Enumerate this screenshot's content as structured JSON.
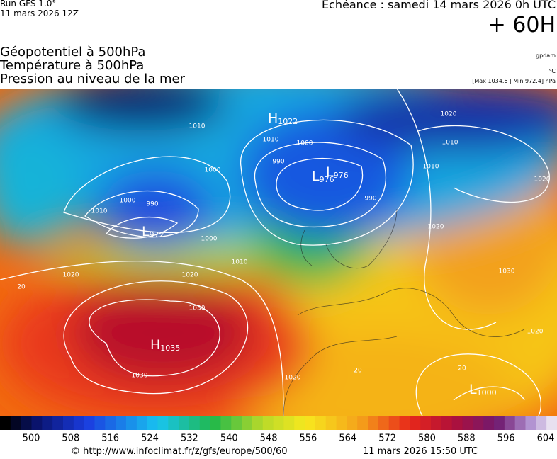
{
  "header": {
    "run": "Run GFS 1.0°",
    "run_date": "11 mars 2026 12Z",
    "echeance": "Echéance : samedi 14 mars 2026 0h UTC",
    "lead": "+ 60H"
  },
  "fields": [
    "Géopotentiel à 500hPa",
    "Température à 500hPa",
    "Pression au niveau de la mer"
  ],
  "units": [
    "gpdam",
    "°C",
    "[Max 1034.6 | Min 972.4] hPa"
  ],
  "map": {
    "centers": [
      {
        "kind": "H",
        "value": "1022"
      },
      {
        "kind": "L",
        "value": "976"
      },
      {
        "kind": "L",
        "value": "976"
      },
      {
        "kind": "L",
        "value": "972"
      },
      {
        "kind": "H",
        "value": "1035"
      },
      {
        "kind": "L",
        "value": "1000"
      }
    ],
    "contour_labels": [
      "1010",
      "1010",
      "1000",
      "990",
      "1000",
      "1010",
      "1000",
      "990",
      "990",
      "1020",
      "1010",
      "1010",
      "1020",
      "1020",
      "1000",
      "1010",
      "1020",
      "1020",
      "1030",
      "1030",
      "1020",
      "1030",
      "1020",
      "20",
      "20",
      "20"
    ]
  },
  "colorbar": {
    "ticks": [
      "500",
      "508",
      "516",
      "524",
      "532",
      "540",
      "548",
      "556",
      "564",
      "572",
      "580",
      "588",
      "596",
      "604"
    ]
  },
  "footer": {
    "url": "© http://www.infoclimat.fr/z/gfs/europe/500/60",
    "timestamp": "11 mars 2026 15:50 UTC"
  }
}
